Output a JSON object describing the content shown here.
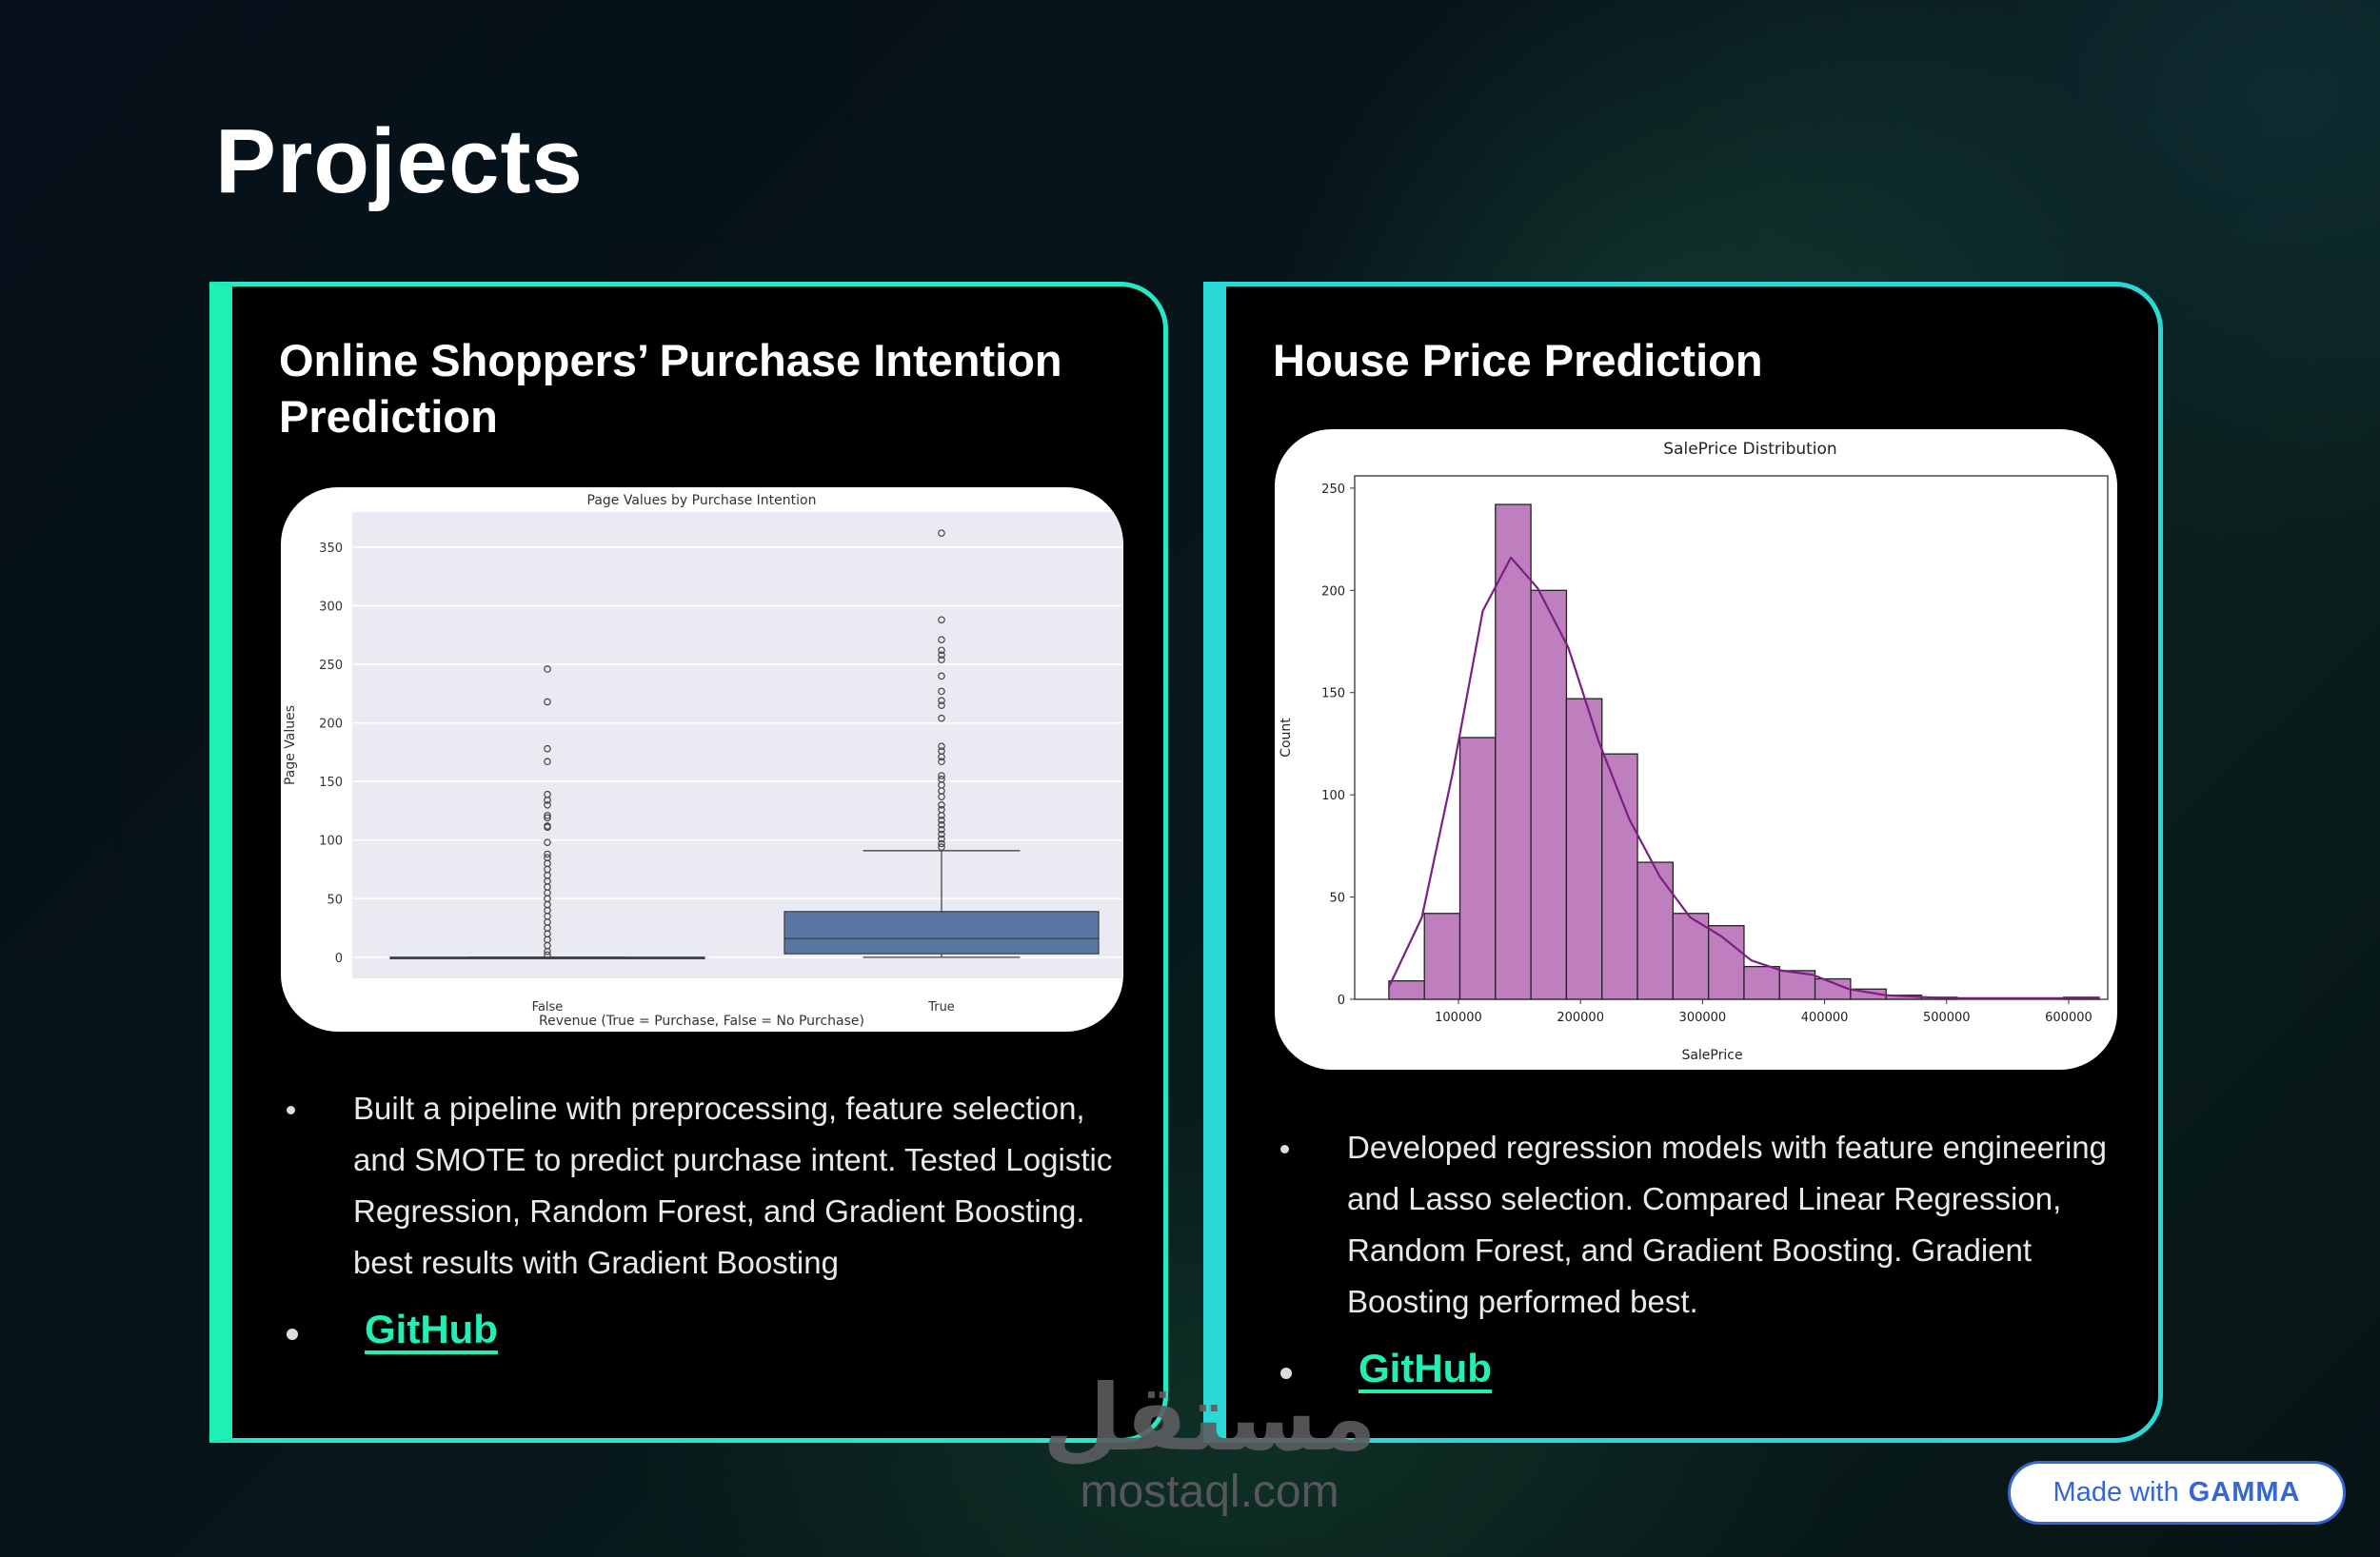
{
  "page_title": "Projects",
  "projects": [
    {
      "title": "Online Shoppers’ Purchase Intention Prediction",
      "description": "Built a pipeline with preprocessing, feature selection, and SMOTE to predict purchase intent. Tested Logistic Regression, Random Forest, and Gradient Boosting. best results with Gradient Boosting",
      "link_label": "GitHub"
    },
    {
      "title": "House Price Prediction",
      "description": "Developed regression models with feature engineering and Lasso selection. Compared Linear Regression, Random Forest, and Gradient Boosting. Gradient Boosting performed best.",
      "link_label": "GitHub"
    }
  ],
  "watermark": {
    "arabic": "مستقل",
    "site": "mostaql.com"
  },
  "badge": {
    "prefix": "Made with",
    "brand": "GAMMA"
  },
  "colors": {
    "accent": "#1df0b4",
    "card_border_2": "#2ad8d6",
    "box": "#5875a4",
    "hist": "#bf7fbf",
    "kde": "#7b1f82",
    "gamma": "#3566d6"
  },
  "chart_data": [
    {
      "type": "box",
      "title": "Page Values by Purchase Intention",
      "xlabel": "Revenue (True = Purchase, False = No Purchase)",
      "ylabel": "Page Values",
      "categories": [
        "False",
        "True"
      ],
      "yticks": [
        "0",
        "50",
        "100",
        "150",
        "200",
        "250",
        "300",
        "350"
      ],
      "ylim": [
        -18,
        380
      ],
      "grid": true,
      "boxes": [
        {
          "min": 0,
          "q1": 0,
          "median": 0,
          "q3": 0,
          "max": 0,
          "outliers": [
            246,
            218,
            178,
            167,
            139,
            134,
            130,
            121,
            119,
            112,
            111,
            98,
            88,
            85,
            80,
            75,
            70,
            65,
            60,
            55,
            50,
            45,
            40,
            35,
            30,
            25,
            20,
            15,
            10,
            5,
            2
          ]
        },
        {
          "min": 0,
          "q1": 3,
          "median": 16,
          "q3": 39,
          "max": 91,
          "outliers": [
            362,
            288,
            271,
            262,
            258,
            254,
            240,
            227,
            219,
            215,
            204,
            180,
            176,
            171,
            167,
            155,
            152,
            147,
            142,
            137,
            130,
            126,
            121,
            117,
            113,
            109,
            105,
            101,
            97,
            94
          ]
        }
      ]
    },
    {
      "type": "histogram",
      "title": "SalePrice Distribution",
      "xlabel": "SalePrice",
      "ylabel": "Count",
      "xticks": [
        "100000",
        "200000",
        "300000",
        "400000",
        "500000",
        "600000"
      ],
      "yticks": [
        "0",
        "50",
        "100",
        "150",
        "200",
        "250"
      ],
      "xlim": [
        15000,
        632000
      ],
      "ylim": [
        0,
        256
      ],
      "bin_start": 43000,
      "bin_width": 29100,
      "counts": [
        9,
        42,
        128,
        242,
        200,
        147,
        120,
        67,
        42,
        36,
        16,
        14,
        10,
        5,
        2,
        1,
        0,
        0,
        0,
        1
      ],
      "kde": [
        [
          43000,
          6
        ],
        [
          70000,
          40
        ],
        [
          95000,
          110
        ],
        [
          120000,
          190
        ],
        [
          143000,
          216
        ],
        [
          165000,
          201
        ],
        [
          190000,
          172
        ],
        [
          215000,
          126
        ],
        [
          240000,
          88
        ],
        [
          265000,
          60
        ],
        [
          290000,
          40
        ],
        [
          315000,
          31
        ],
        [
          340000,
          19
        ],
        [
          365000,
          14
        ],
        [
          390000,
          12
        ],
        [
          420000,
          5
        ],
        [
          450000,
          2
        ],
        [
          500000,
          0.5
        ],
        [
          625000,
          0.5
        ]
      ]
    }
  ]
}
